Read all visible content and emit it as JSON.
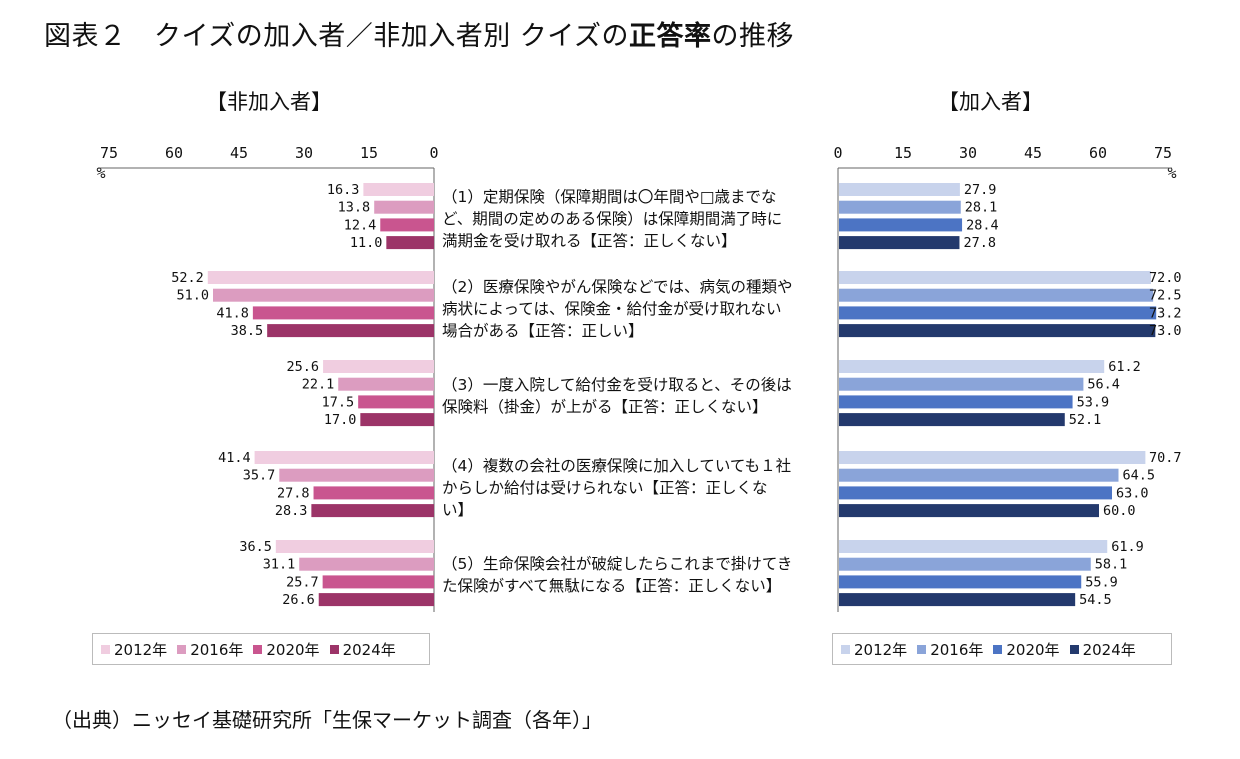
{
  "title": {
    "prefix": "図表２　クイズの加入者／非加入者別 クイズの",
    "bold": "正答率",
    "suffix": "の推移"
  },
  "source": "（出典）ニッセイ基礎研究所「生保マーケット調査（各年）」",
  "legend": [
    "2012年",
    "2016年",
    "2020年",
    "2024年"
  ],
  "colors": {
    "nonmember": [
      "#f0cde0",
      "#dc9cc0",
      "#c9558f",
      "#9c3468"
    ],
    "member": [
      "#c8d3ec",
      "#8aa4d9",
      "#4c74c4",
      "#23396d"
    ]
  },
  "chart_data": [
    {
      "type": "bar",
      "orientation": "horizontal",
      "direction": "right-to-left",
      "title": "【非加入者】",
      "unit": "%",
      "xlim": [
        0,
        75
      ],
      "ticks": [
        "75",
        "60",
        "45",
        "30",
        "15",
        "0"
      ],
      "categories": [
        "（1）定期保険（保障期間は〇年間や□歳までなど、期間の定めのある保険）は保障期間満了時に満期金を受け取れる【正答：正しくない】",
        "（2）医療保険やがん保険などでは、病気の種類や病状によっては、保険金・給付金が受け取れない場合がある【正答：正しい】",
        "（3）一度入院して給付金を受け取ると、その後は保険料（掛金）が上がる【正答：正しくない】",
        "（4）複数の会社の医療保険に加入していても１社からしか給付は受けられない【正答：正しくない】",
        "（5）生命保険会社が破綻したらこれまで掛けてきた保険がすべて無駄になる【正答：正しくない】"
      ],
      "series": [
        {
          "name": "2012年",
          "values": [
            16.3,
            52.2,
            25.6,
            41.4,
            36.5
          ]
        },
        {
          "name": "2016年",
          "values": [
            13.8,
            51.0,
            22.1,
            35.7,
            31.1
          ]
        },
        {
          "name": "2020年",
          "values": [
            12.4,
            41.8,
            17.5,
            27.8,
            25.7
          ]
        },
        {
          "name": "2024年",
          "values": [
            11.0,
            38.5,
            17.0,
            28.3,
            26.6
          ]
        }
      ]
    },
    {
      "type": "bar",
      "orientation": "horizontal",
      "direction": "left-to-right",
      "title": "【加入者】",
      "unit": "%",
      "xlim": [
        0,
        75
      ],
      "ticks": [
        "0",
        "15",
        "30",
        "45",
        "60",
        "75"
      ],
      "categories": [
        "（1）定期保険（保障期間は〇年間や□歳までなど、期間の定めのある保険）は保障期間満了時に満期金を受け取れる【正答：正しくない】",
        "（2）医療保険やがん保険などでは、病気の種類や病状によっては、保険金・給付金が受け取れない場合がある【正答：正しい】",
        "（3）一度入院して給付金を受け取ると、その後は保険料（掛金）が上がる【正答：正しくない】",
        "（4）複数の会社の医療保険に加入していても１社からしか給付は受けられない【正答：正しくない】",
        "（5）生命保険会社が破綻したらこれまで掛けてきた保険がすべて無駄になる【正答：正しくない】"
      ],
      "series": [
        {
          "name": "2012年",
          "values": [
            27.9,
            72.0,
            61.2,
            70.7,
            61.9
          ]
        },
        {
          "name": "2016年",
          "values": [
            28.1,
            72.5,
            56.4,
            64.5,
            58.1
          ]
        },
        {
          "name": "2020年",
          "values": [
            28.4,
            73.2,
            53.9,
            63.0,
            55.9
          ]
        },
        {
          "name": "2024年",
          "values": [
            27.8,
            73.0,
            52.1,
            60.0,
            54.5
          ]
        }
      ]
    }
  ],
  "question_lines": [
    [
      "（1）定期保険（保障期間は〇年間や□歳までな",
      "ど、期間の定めのある保険）は保障期間満了時に",
      "満期金を受け取れる【正答：正しくない】"
    ],
    [
      "（2）医療保険やがん保険などでは、病気の種類や",
      "病状によっては、保険金・給付金が受け取れない",
      "場合がある【正答：正しい】"
    ],
    [
      "（3）一度入院して給付金を受け取ると、その後は",
      "保険料（掛金）が上がる【正答：正しくない】"
    ],
    [
      "（4）複数の会社の医療保険に加入していても１社",
      "からしか給付は受けられない【正答：正しくな",
      "い】"
    ],
    [
      "（5）生命保険会社が破綻したらこれまで掛けてき",
      "た保険がすべて無駄になる【正答：正しくない】"
    ]
  ]
}
